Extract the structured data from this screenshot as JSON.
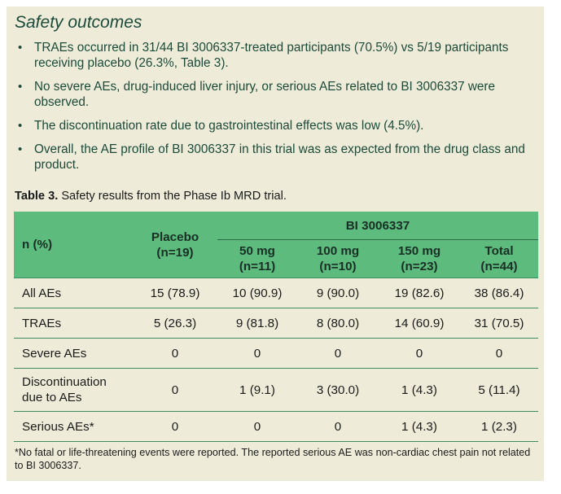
{
  "section": {
    "title": "Safety outcomes",
    "bullets": [
      "TRAEs occurred in 31/44 BI 3006337-treated participants (70.5%) vs 5/19 participants receiving placebo (26.3%, Table 3).",
      "No severe AEs, drug-induced liver injury, or serious AEs related to BI 3006337 were observed.",
      "The discontinuation rate due to gastrointestinal effects was low (4.5%).",
      "Overall, the AE profile of BI 3006337 in this trial was as expected from the drug class and product."
    ],
    "bullet_symbol": "•"
  },
  "table": {
    "caption_label": "Table 3.",
    "caption_text": " Safety results from the Phase Ib MRD trial.",
    "row_header": "n (%)",
    "placebo_header": [
      "Placebo",
      "(n=19)"
    ],
    "group_header": "BI 3006337",
    "sub_headers": [
      [
        "50 mg",
        "(n=11)"
      ],
      [
        "100 mg",
        "(n=10)"
      ],
      [
        "150 mg",
        "(n=23)"
      ],
      [
        "Total",
        "(n=44)"
      ]
    ],
    "rows": [
      {
        "label": [
          "All AEs"
        ],
        "cells": [
          "15 (78.9)",
          "10 (90.9)",
          "9 (90.0)",
          "19 (82.6)",
          "38 (86.4)"
        ]
      },
      {
        "label": [
          "TRAEs"
        ],
        "cells": [
          "5 (26.3)",
          "9 (81.8)",
          "8 (80.0)",
          "14 (60.9)",
          "31 (70.5)"
        ]
      },
      {
        "label": [
          "Severe AEs"
        ],
        "cells": [
          "0",
          "0",
          "0",
          "0",
          "0"
        ]
      },
      {
        "label": [
          "Discontinuation",
          "due to AEs"
        ],
        "cells": [
          "0",
          "1 (9.1)",
          "3 (30.0)",
          "1 (4.3)",
          "5 (11.4)"
        ]
      },
      {
        "label": [
          "Serious AEs*"
        ],
        "cells": [
          "0",
          "0",
          "0",
          "1 (4.3)",
          "1 (2.3)"
        ]
      }
    ],
    "footnote": "*No fatal or life-threatening events were reported. The reported serious AE was non-cardiac chest pain not related to BI 3006337."
  },
  "colors": {
    "panel_background": "#eeecd9",
    "table_header": "#5cbb7d",
    "rule": "#3c8b63",
    "heading_text": "#1c4a3a"
  }
}
